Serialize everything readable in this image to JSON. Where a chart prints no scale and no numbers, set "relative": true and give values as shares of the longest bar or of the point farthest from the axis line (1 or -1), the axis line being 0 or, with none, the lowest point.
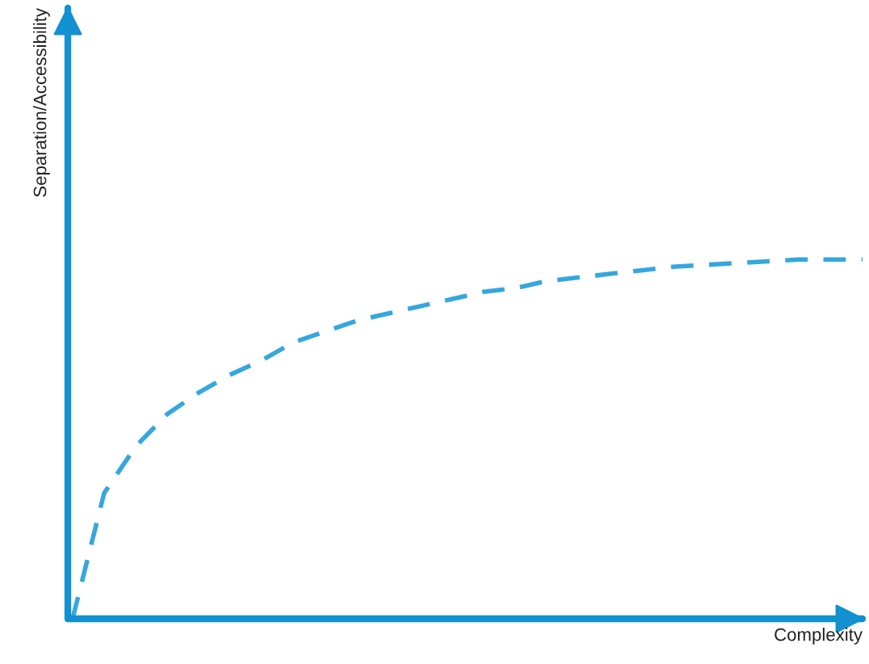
{
  "chart_data": {
    "type": "line",
    "relative": true,
    "xlabel": "Complexity",
    "ylabel": "Separation/Accessibility",
    "categories": [
      null,
      null,
      null,
      null,
      null,
      null,
      null,
      null,
      null,
      null,
      null,
      null,
      null,
      null,
      null,
      null,
      null,
      null,
      null,
      null,
      null,
      null,
      null,
      null,
      null,
      null
    ],
    "series": [
      {
        "color": "#35a7dd",
        "values": [
          0,
          0.35,
          0.48,
          0.57,
          0.63,
          0.68,
          0.72,
          0.77,
          0.8,
          0.83,
          0.85,
          0.87,
          0.89,
          0.91,
          0.92,
          0.94,
          0.95,
          0.96,
          0.97,
          0.98,
          0.985,
          0.99,
          0.995,
          1,
          1,
          1
        ]
      }
    ],
    "line_style": "dashed",
    "marker": "none",
    "grid": false,
    "legend": false,
    "tick_labels": false
  }
}
